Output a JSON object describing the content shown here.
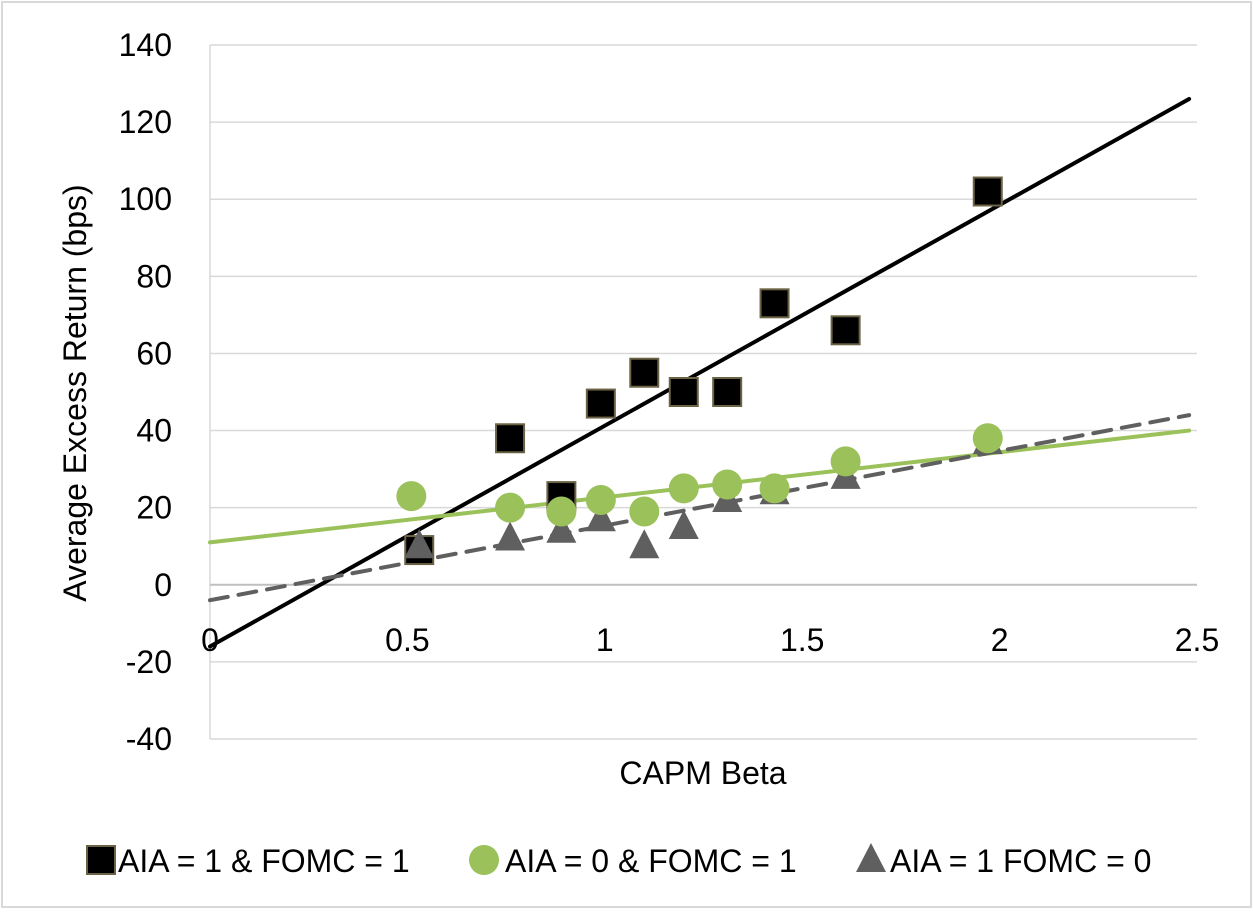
{
  "chart_data": {
    "type": "scatter",
    "xlabel": "CAPM Beta",
    "ylabel": "Average Excess Return (bps)",
    "xlim": [
      0,
      2.5
    ],
    "ylim": [
      -40,
      140
    ],
    "x_ticks": [
      "0",
      "0.5",
      "1",
      "1.5",
      "2",
      "2.5"
    ],
    "y_ticks": [
      "140",
      "120",
      "100",
      "80",
      "60",
      "40",
      "20",
      "0",
      "-20",
      "-40"
    ],
    "grid": "horizontal",
    "legend_position": "bottom",
    "series": [
      {
        "name": "AIA = 1 & FOMC = 1",
        "marker": "square",
        "color": "#000000",
        "marker_edge": "#6b6345",
        "points": [
          [
            0.53,
            9
          ],
          [
            0.76,
            38
          ],
          [
            0.89,
            23
          ],
          [
            0.99,
            47
          ],
          [
            1.1,
            55
          ],
          [
            1.2,
            50
          ],
          [
            1.31,
            50
          ],
          [
            1.43,
            73
          ],
          [
            1.61,
            66
          ],
          [
            1.97,
            102
          ]
        ],
        "trendline": {
          "from": [
            0,
            -16
          ],
          "to": [
            2.48,
            126
          ],
          "style": "solid",
          "color": "#000000"
        }
      },
      {
        "name": "AIA = 0 & FOMC = 1",
        "marker": "circle",
        "color": "#9bc15a",
        "points": [
          [
            0.51,
            23
          ],
          [
            0.76,
            20
          ],
          [
            0.89,
            19
          ],
          [
            0.99,
            22
          ],
          [
            1.1,
            19
          ],
          [
            1.2,
            25
          ],
          [
            1.31,
            26
          ],
          [
            1.43,
            25
          ],
          [
            1.61,
            32
          ],
          [
            1.97,
            38
          ]
        ],
        "trendline": {
          "from": [
            0,
            11
          ],
          "to": [
            2.48,
            40
          ],
          "style": "solid",
          "color": "#9bc15a"
        }
      },
      {
        "name": "AIA = 1 FOMC = 0",
        "marker": "triangle",
        "color": "#5f5f5f",
        "points": [
          [
            0.53,
            10
          ],
          [
            0.76,
            12
          ],
          [
            0.89,
            14
          ],
          [
            0.99,
            17
          ],
          [
            1.1,
            10
          ],
          [
            1.2,
            15
          ],
          [
            1.31,
            22
          ],
          [
            1.43,
            24
          ],
          [
            1.61,
            28
          ],
          [
            1.97,
            37
          ]
        ],
        "trendline": {
          "from": [
            0,
            -4
          ],
          "to": [
            2.48,
            44
          ],
          "style": "dashed",
          "color": "#5f5f5f"
        }
      }
    ]
  }
}
